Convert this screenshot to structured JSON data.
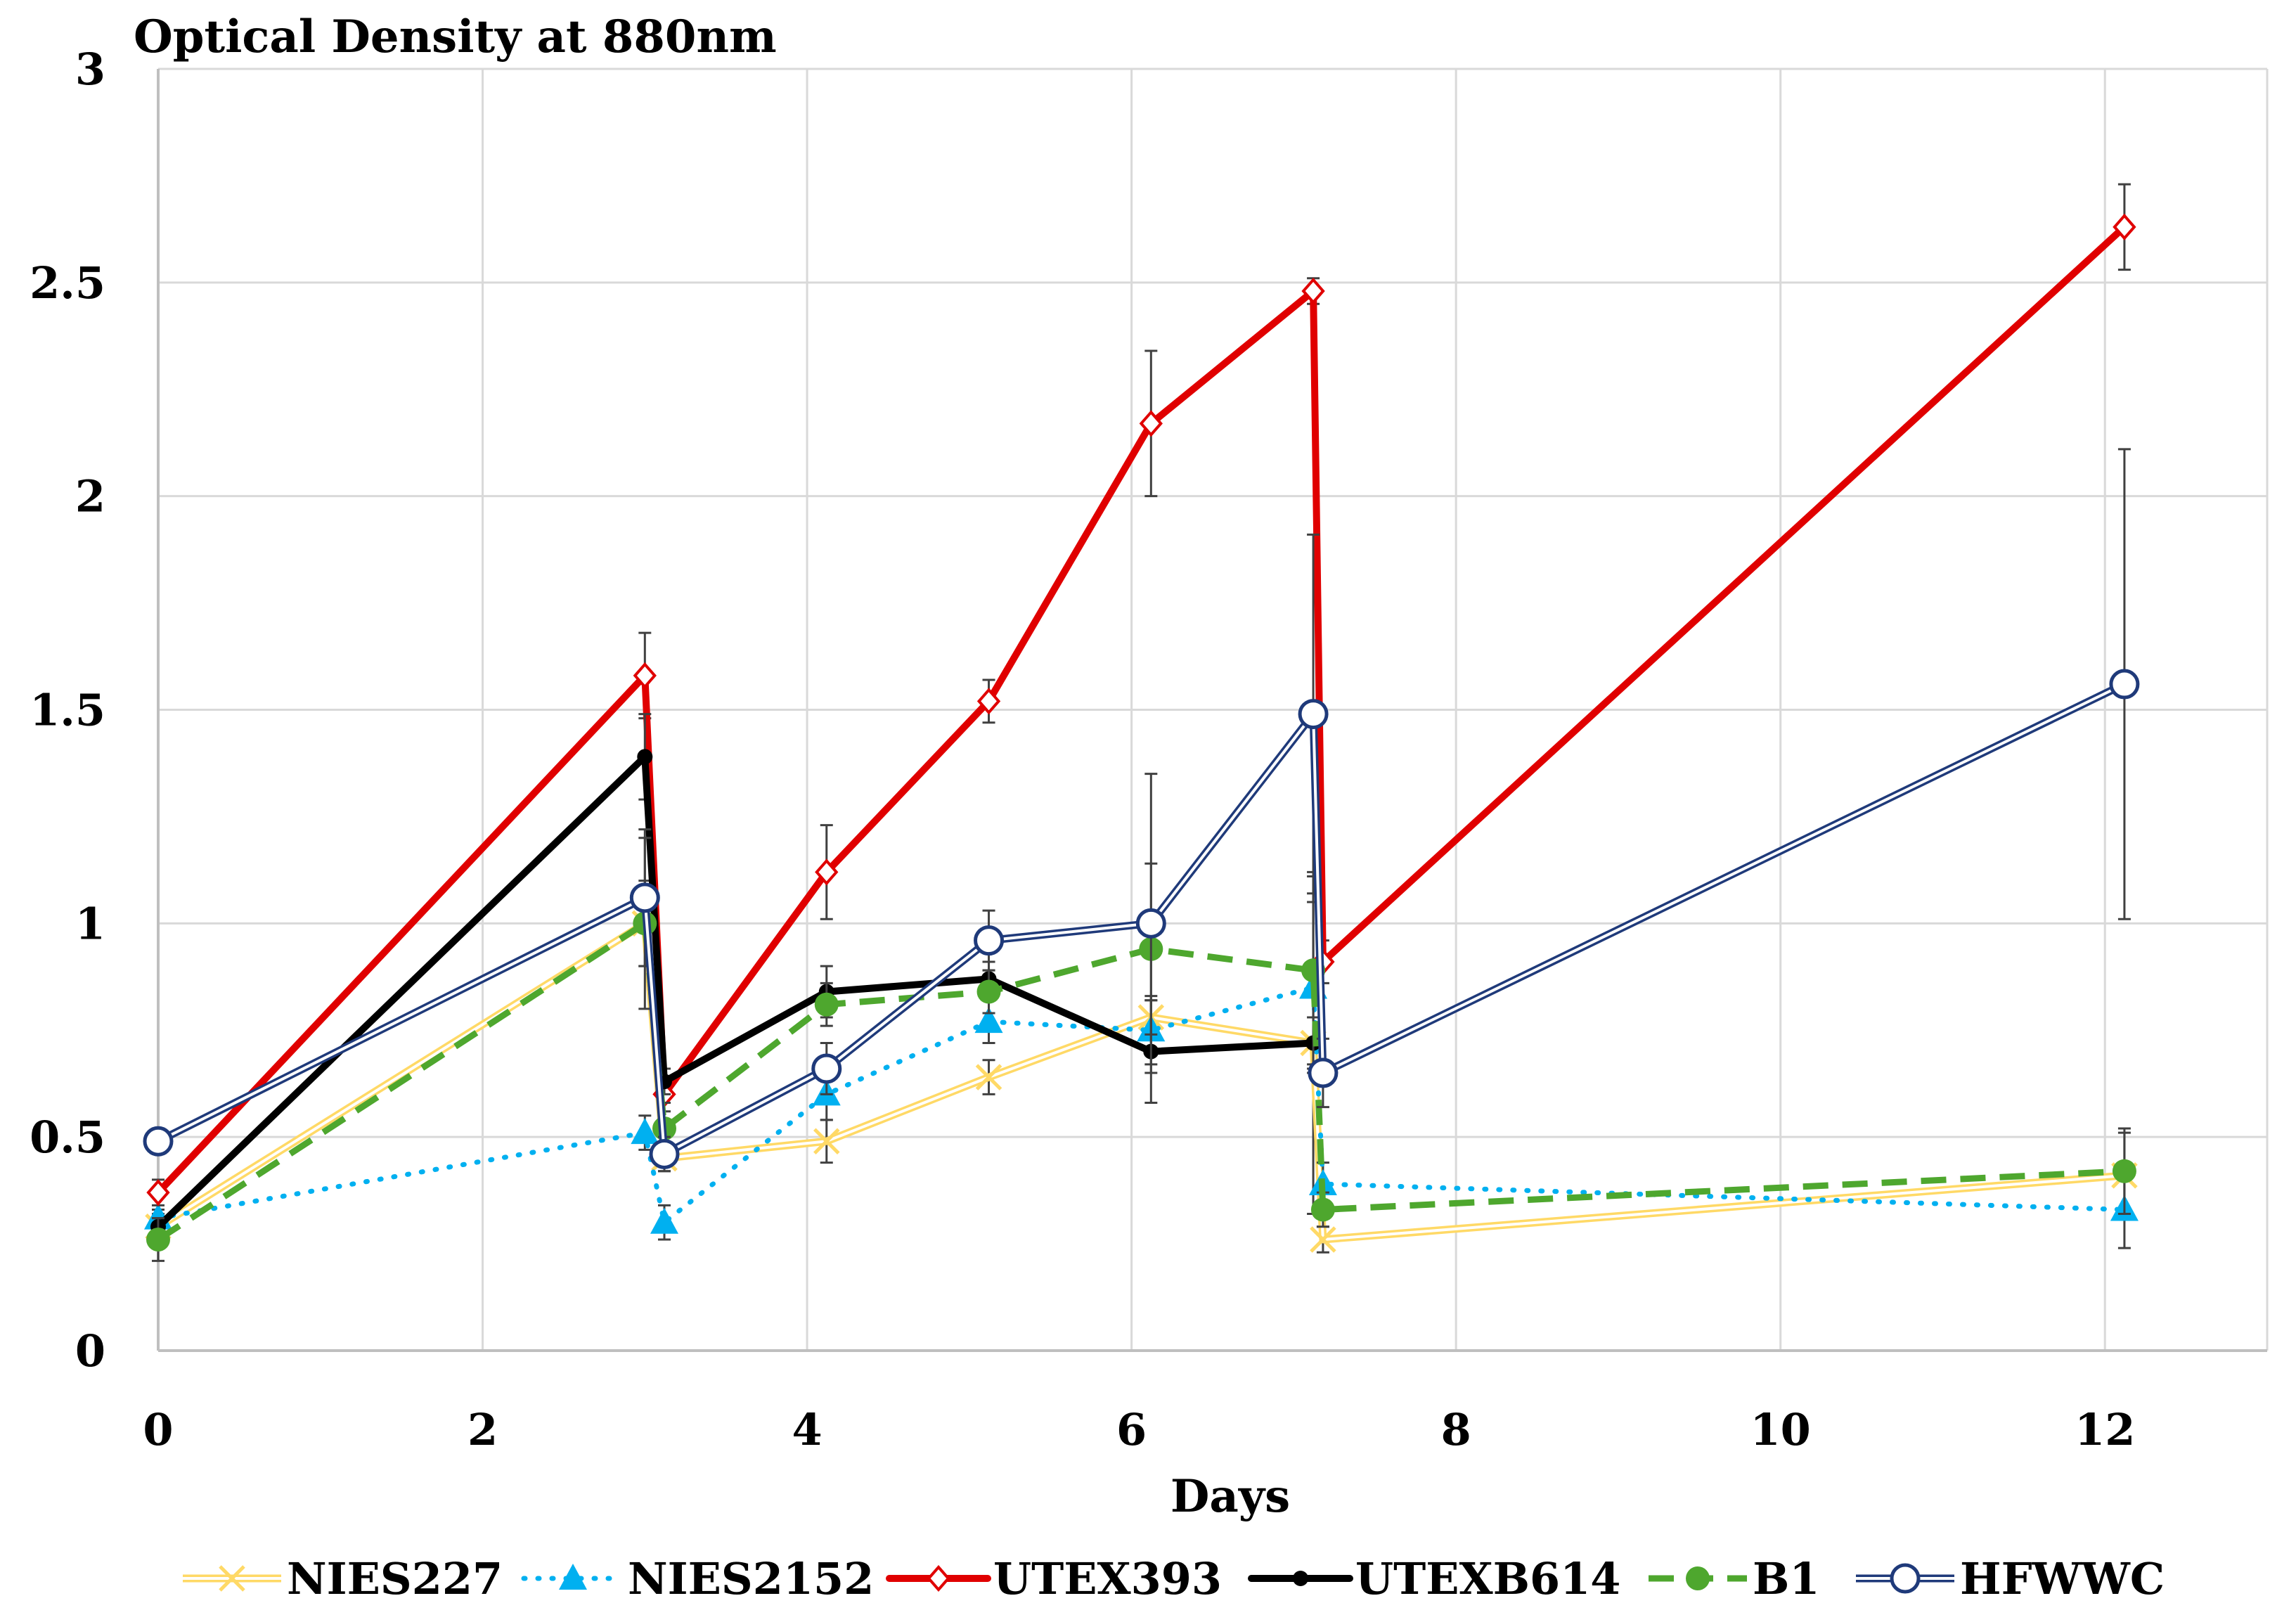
{
  "chart_data": {
    "type": "line",
    "title": "Optical Density at 880nm",
    "xlabel": "Days",
    "ylabel": "",
    "xlim": [
      0,
      13
    ],
    "ylim": [
      0,
      3
    ],
    "x_ticks": [
      0,
      2,
      4,
      6,
      8,
      10,
      12
    ],
    "y_ticks": [
      0,
      0.5,
      1,
      1.5,
      2,
      2.5,
      3
    ],
    "x_tick_labels": [
      "0",
      "2",
      "4",
      "6",
      "8",
      "10",
      "12"
    ],
    "y_tick_labels": [
      "0",
      "0.5",
      "1",
      "1.5",
      "2",
      "2.5",
      "3"
    ],
    "grid": true,
    "legend_position": "bottom",
    "x": [
      0,
      3,
      3.12,
      4.12,
      5.12,
      6.12,
      7.12,
      7.18,
      12.12
    ],
    "series": [
      {
        "name": "NIES227",
        "color": "#FFD966",
        "style": "double",
        "marker": "x",
        "values": [
          0.29,
          1.0,
          0.45,
          0.49,
          0.64,
          0.78,
          0.72,
          0.26,
          0.41
        ],
        "errors": [
          0.03,
          0.1,
          0.03,
          0.05,
          0.04,
          0.04,
          0.4,
          0.03,
          0.1
        ]
      },
      {
        "name": "NIES2152",
        "color": "#00B0F0",
        "style": "dotted",
        "marker": "triangle",
        "values": [
          0.31,
          0.51,
          0.3,
          0.6,
          0.77,
          0.75,
          0.85,
          0.39,
          0.33
        ],
        "errors": [
          0.02,
          0.04,
          0.04,
          0.06,
          0.05,
          0.08,
          0.2,
          0.05,
          0.09
        ]
      },
      {
        "name": "UTEX393",
        "color": "#E00000",
        "style": "solid",
        "marker": "diamond",
        "values": [
          0.37,
          1.58,
          0.6,
          1.12,
          1.52,
          2.17,
          2.48,
          0.91,
          2.63
        ],
        "errors": [
          0.03,
          0.1,
          0.04,
          0.11,
          0.05,
          0.17,
          0.03,
          0.05,
          0.1
        ]
      },
      {
        "name": "UTEXB614",
        "color": "#000000",
        "style": "solid",
        "marker": "dot",
        "values": [
          0.29,
          1.39,
          0.63,
          0.84,
          0.87,
          0.7,
          0.72,
          null,
          null
        ],
        "errors": [
          0.02,
          0.1,
          0.03,
          0.06,
          0.04,
          0.12,
          0.06,
          null,
          null
        ]
      },
      {
        "name": "B1",
        "color": "#4EA72E",
        "style": "dashed",
        "marker": "circle-filled",
        "values": [
          0.26,
          1.0,
          0.52,
          0.81,
          0.84,
          0.94,
          0.89,
          0.33,
          0.42
        ],
        "errors": [
          0.05,
          0.2,
          0.06,
          0.05,
          0.05,
          0.2,
          0.22,
          0.04,
          0.1
        ]
      },
      {
        "name": "HFWWC",
        "color": "#1F3A7A",
        "style": "double",
        "marker": "circle-open",
        "values": [
          0.49,
          1.06,
          0.46,
          0.66,
          0.96,
          1.0,
          1.49,
          0.65,
          1.56
        ],
        "errors": [
          0.03,
          0.16,
          0.04,
          0.06,
          0.07,
          0.35,
          0.42,
          0.08,
          0.55
        ]
      }
    ]
  }
}
